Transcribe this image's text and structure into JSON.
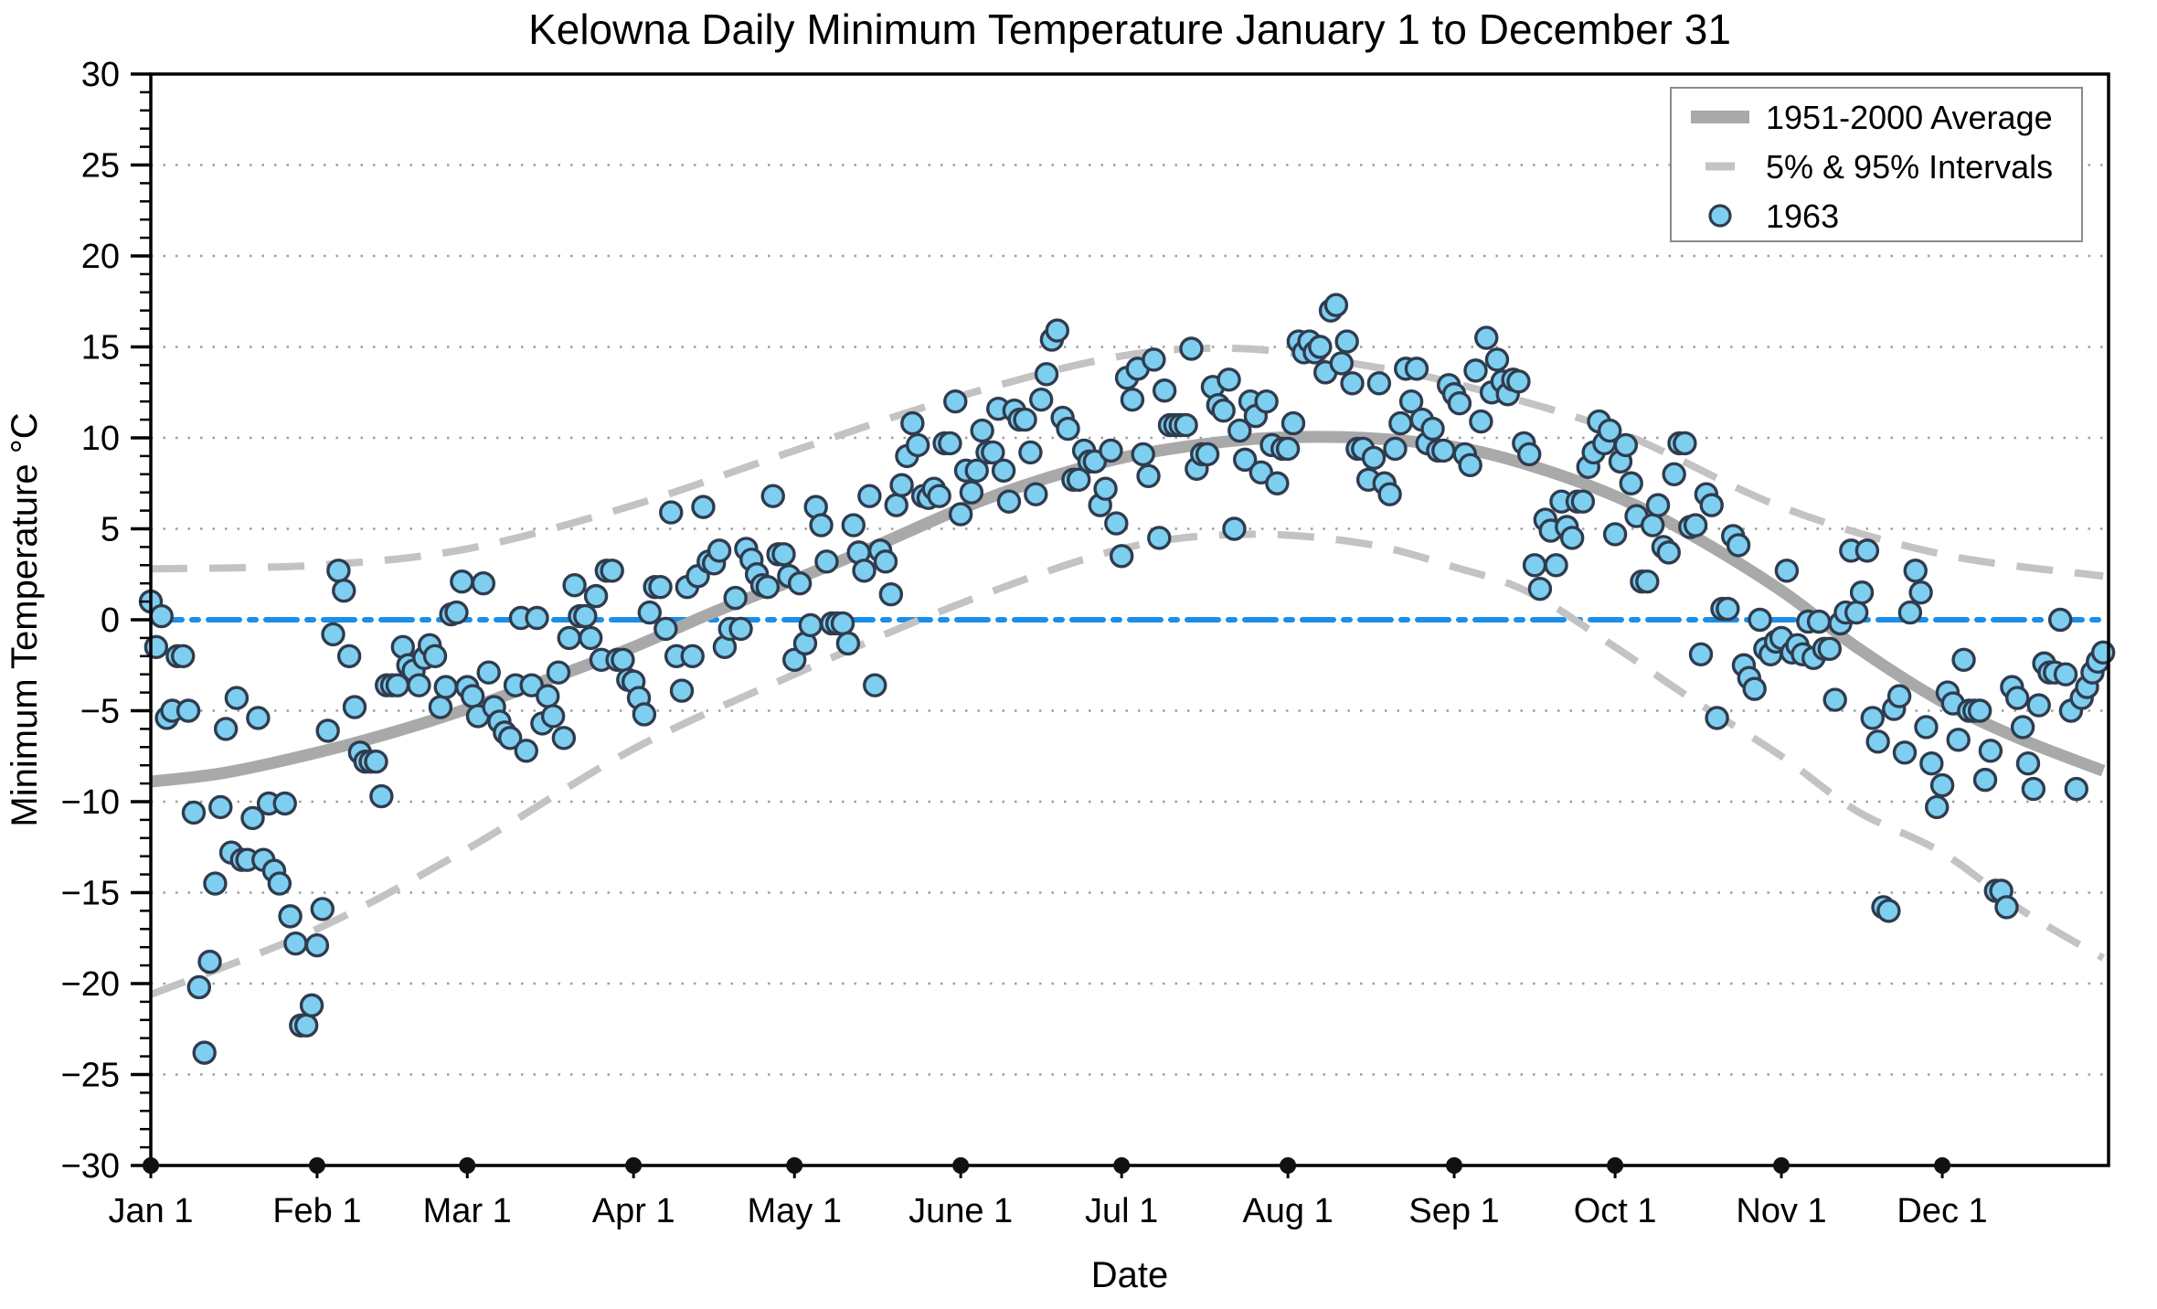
{
  "title": "Kelowna Daily Minimum Temperature January 1 to December 31",
  "axes": {
    "x_label": "Date",
    "y_label": "Minimum Temperature °C",
    "y_min": -30,
    "y_max": 30,
    "y_major_step": 5,
    "y_minor_step": 1,
    "x_ticks": [
      {
        "label": "Jan 1",
        "day": 1
      },
      {
        "label": "Feb 1",
        "day": 32
      },
      {
        "label": "Mar 1",
        "day": 60
      },
      {
        "label": "Apr 1",
        "day": 91
      },
      {
        "label": "May 1",
        "day": 121
      },
      {
        "label": "June 1",
        "day": 152
      },
      {
        "label": "Jul 1",
        "day": 182
      },
      {
        "label": "Aug 1",
        "day": 213
      },
      {
        "label": "Sep 1",
        "day": 244
      },
      {
        "label": "Oct 1",
        "day": 274
      },
      {
        "label": "Nov 1",
        "day": 305
      },
      {
        "label": "Dec 1",
        "day": 335
      }
    ]
  },
  "legend": [
    {
      "swatch": "thick-line",
      "label": "1951-2000 Average"
    },
    {
      "swatch": "dashed-line",
      "label": "5% & 95% Intervals"
    },
    {
      "swatch": "marker",
      "label": "1963"
    }
  ],
  "colors": {
    "marker_fill": "#7ecef0",
    "marker_edge": "#2f3c4e",
    "average_line": "#a9a9a9",
    "interval_line": "#c3c3c3",
    "zero_line": "#1b8ee8",
    "grid": "#9e9e9e",
    "axis": "#000000",
    "legend_border": "#8a8a8a"
  },
  "chart_data": {
    "type": "scatter",
    "title": "Kelowna Daily Minimum Temperature January 1 to December 31",
    "xlabel": "Date",
    "ylabel": "Minimum Temperature °C",
    "ylim": [
      -30,
      30
    ],
    "grid": "dotted horizontal every 5 °C",
    "legend_position": "upper right",
    "zero_reference_line_c": 0,
    "month_days": [
      31,
      28,
      31,
      30,
      31,
      30,
      31,
      31,
      30,
      31,
      30,
      31
    ],
    "series": [
      {
        "name": "1951-2000 Average",
        "style": "thick solid gray line",
        "points_day_value": [
          [
            1,
            -8.9
          ],
          [
            15,
            -8.4
          ],
          [
            32,
            -7.3
          ],
          [
            46,
            -6.2
          ],
          [
            60,
            -4.9
          ],
          [
            74,
            -3.4
          ],
          [
            91,
            -1.5
          ],
          [
            105,
            0.3
          ],
          [
            121,
            2.2
          ],
          [
            135,
            3.9
          ],
          [
            152,
            6.1
          ],
          [
            166,
            7.6
          ],
          [
            182,
            8.9
          ],
          [
            196,
            9.6
          ],
          [
            210,
            10.0
          ],
          [
            227,
            10.0
          ],
          [
            244,
            9.5
          ],
          [
            258,
            8.5
          ],
          [
            274,
            6.8
          ],
          [
            288,
            4.7
          ],
          [
            305,
            1.6
          ],
          [
            319,
            -1.5
          ],
          [
            335,
            -4.5
          ],
          [
            350,
            -6.6
          ],
          [
            365,
            -8.3
          ]
        ]
      },
      {
        "name": "95% Interval (upper)",
        "style": "dashed gray line",
        "points_day_value": [
          [
            1,
            2.8
          ],
          [
            32,
            3.0
          ],
          [
            60,
            3.9
          ],
          [
            91,
            6.3
          ],
          [
            121,
            9.3
          ],
          [
            152,
            12.3
          ],
          [
            182,
            14.5
          ],
          [
            205,
            14.9
          ],
          [
            227,
            14.0
          ],
          [
            244,
            13.0
          ],
          [
            274,
            10.4
          ],
          [
            305,
            6.2
          ],
          [
            335,
            3.6
          ],
          [
            365,
            2.4
          ]
        ]
      },
      {
        "name": "5% Interval (lower)",
        "style": "dashed gray line",
        "points_day_value": [
          [
            1,
            -20.6
          ],
          [
            32,
            -17.0
          ],
          [
            60,
            -12.6
          ],
          [
            91,
            -7.1
          ],
          [
            121,
            -3.0
          ],
          [
            152,
            0.9
          ],
          [
            182,
            3.9
          ],
          [
            205,
            4.7
          ],
          [
            227,
            4.2
          ],
          [
            244,
            2.9
          ],
          [
            258,
            1.5
          ],
          [
            274,
            -1.5
          ],
          [
            288,
            -4.3
          ],
          [
            305,
            -7.5
          ],
          [
            319,
            -10.5
          ],
          [
            335,
            -12.8
          ],
          [
            350,
            -16.0
          ],
          [
            365,
            -18.6
          ]
        ]
      },
      {
        "name": "1963",
        "style": "light blue circle markers",
        "daily_min_c": [
          1.0,
          -1.5,
          0.2,
          -5.4,
          -5.0,
          -2.0,
          -2.0,
          -5.0,
          -10.6,
          -20.2,
          -23.8,
          -18.8,
          -14.5,
          -10.3,
          -6.0,
          -12.8,
          -4.3,
          -13.2,
          -13.2,
          -10.9,
          -5.4,
          -13.2,
          -10.1,
          -13.8,
          -14.5,
          -10.1,
          -16.3,
          -17.8,
          -22.3,
          -22.3,
          -21.2,
          -17.9,
          -15.9,
          -6.1,
          -0.8,
          2.7,
          1.6,
          -2.0,
          -4.8,
          -7.3,
          -7.8,
          -7.8,
          -7.8,
          -9.7,
          -3.6,
          -3.6,
          -3.6,
          -1.5,
          -2.5,
          -2.8,
          -3.6,
          -2.1,
          -1.4,
          -2.0,
          -4.8,
          -3.7,
          0.3,
          0.4,
          2.1,
          -3.7,
          -4.2,
          -5.3,
          2.0,
          -2.9,
          -4.8,
          -5.6,
          -6.2,
          -6.5,
          -3.6,
          0.1,
          -7.2,
          -3.6,
          0.1,
          -5.7,
          -4.2,
          -5.3,
          -2.9,
          -6.5,
          -1.0,
          1.9,
          0.2,
          0.2,
          -1.0,
          1.3,
          -2.2,
          2.7,
          2.7,
          -2.2,
          -2.2,
          -3.3,
          -3.4,
          -4.3,
          -5.2,
          0.4,
          1.8,
          1.8,
          -0.5,
          5.9,
          -2.0,
          -3.9,
          1.8,
          -2.0,
          2.4,
          6.2,
          3.2,
          3.1,
          3.8,
          -1.5,
          -0.5,
          1.2,
          -0.5,
          3.9,
          3.3,
          2.5,
          1.9,
          1.8,
          6.8,
          3.6,
          3.6,
          2.4,
          -2.2,
          2.0,
          -1.3,
          -0.3,
          6.2,
          5.2,
          3.2,
          -0.2,
          -0.2,
          -0.2,
          -1.3,
          5.2,
          3.7,
          2.7,
          6.8,
          -3.6,
          3.8,
          3.2,
          1.4,
          6.3,
          7.4,
          9.0,
          10.8,
          9.6,
          6.8,
          6.7,
          7.2,
          6.8,
          9.7,
          9.7,
          12.0,
          5.8,
          8.2,
          7.0,
          8.2,
          10.4,
          9.2,
          9.2,
          11.6,
          8.2,
          6.5,
          11.5,
          11.0,
          11.0,
          9.2,
          6.9,
          12.1,
          13.5,
          15.4,
          15.9,
          11.1,
          10.5,
          7.7,
          7.7,
          9.3,
          8.7,
          8.7,
          6.3,
          7.2,
          9.3,
          5.3,
          3.5,
          13.3,
          12.1,
          13.8,
          9.1,
          7.9,
          14.3,
          4.5,
          12.6,
          10.7,
          10.7,
          10.7,
          10.7,
          14.9,
          8.3,
          9.1,
          9.1,
          12.8,
          11.8,
          11.5,
          13.2,
          5.0,
          10.4,
          8.8,
          12.0,
          11.2,
          8.1,
          12.0,
          9.6,
          7.5,
          9.4,
          9.4,
          10.8,
          15.3,
          14.7,
          15.3,
          14.7,
          15.0,
          13.6,
          17.0,
          17.3,
          14.1,
          15.3,
          13.0,
          9.4,
          9.4,
          7.7,
          8.9,
          13.0,
          7.5,
          6.9,
          9.4,
          10.8,
          13.8,
          12.0,
          13.8,
          11.0,
          9.7,
          10.5,
          9.3,
          9.3,
          12.9,
          12.4,
          11.9,
          9.1,
          8.5,
          13.7,
          10.9,
          15.5,
          12.5,
          14.3,
          13.1,
          12.4,
          13.2,
          13.1,
          9.7,
          9.1,
          3.0,
          1.7,
          5.5,
          4.9,
          3.0,
          6.5,
          5.1,
          4.5,
          6.5,
          6.5,
          8.4,
          9.2,
          10.9,
          9.7,
          10.4,
          4.7,
          8.7,
          9.6,
          7.5,
          5.7,
          2.1,
          2.1,
          5.2,
          6.3,
          4.0,
          3.7,
          8.0,
          9.7,
          9.7,
          5.1,
          5.2,
          -1.9,
          6.9,
          6.3,
          -5.4,
          0.6,
          0.6,
          4.6,
          4.1,
          -2.5,
          -3.2,
          -3.8,
          0.0,
          -1.6,
          -1.9,
          -1.2,
          -1.0,
          2.7,
          -1.8,
          -1.4,
          -1.9,
          -0.1,
          -2.1,
          -0.1,
          -1.6,
          -1.6,
          -4.4,
          -0.2,
          0.4,
          3.8,
          0.4,
          1.5,
          3.8,
          -5.4,
          -6.7,
          -15.8,
          -16.0,
          -4.9,
          -4.2,
          -7.3,
          0.4,
          2.7,
          1.5,
          -5.9,
          -7.9,
          -10.3,
          -9.1,
          -4.0,
          -4.6,
          -6.6,
          -2.2,
          -5.0,
          -5.0,
          -5.0,
          -8.8,
          -7.2,
          -14.9,
          -14.9,
          -15.8,
          -3.7,
          -4.3,
          -5.9,
          -7.9,
          -9.3,
          -4.7,
          -2.4,
          -2.9,
          -2.9,
          0.0,
          -3.0,
          -5.0,
          -9.3,
          -4.3,
          -3.7,
          -2.9,
          -2.3,
          -1.8
        ]
      }
    ]
  }
}
